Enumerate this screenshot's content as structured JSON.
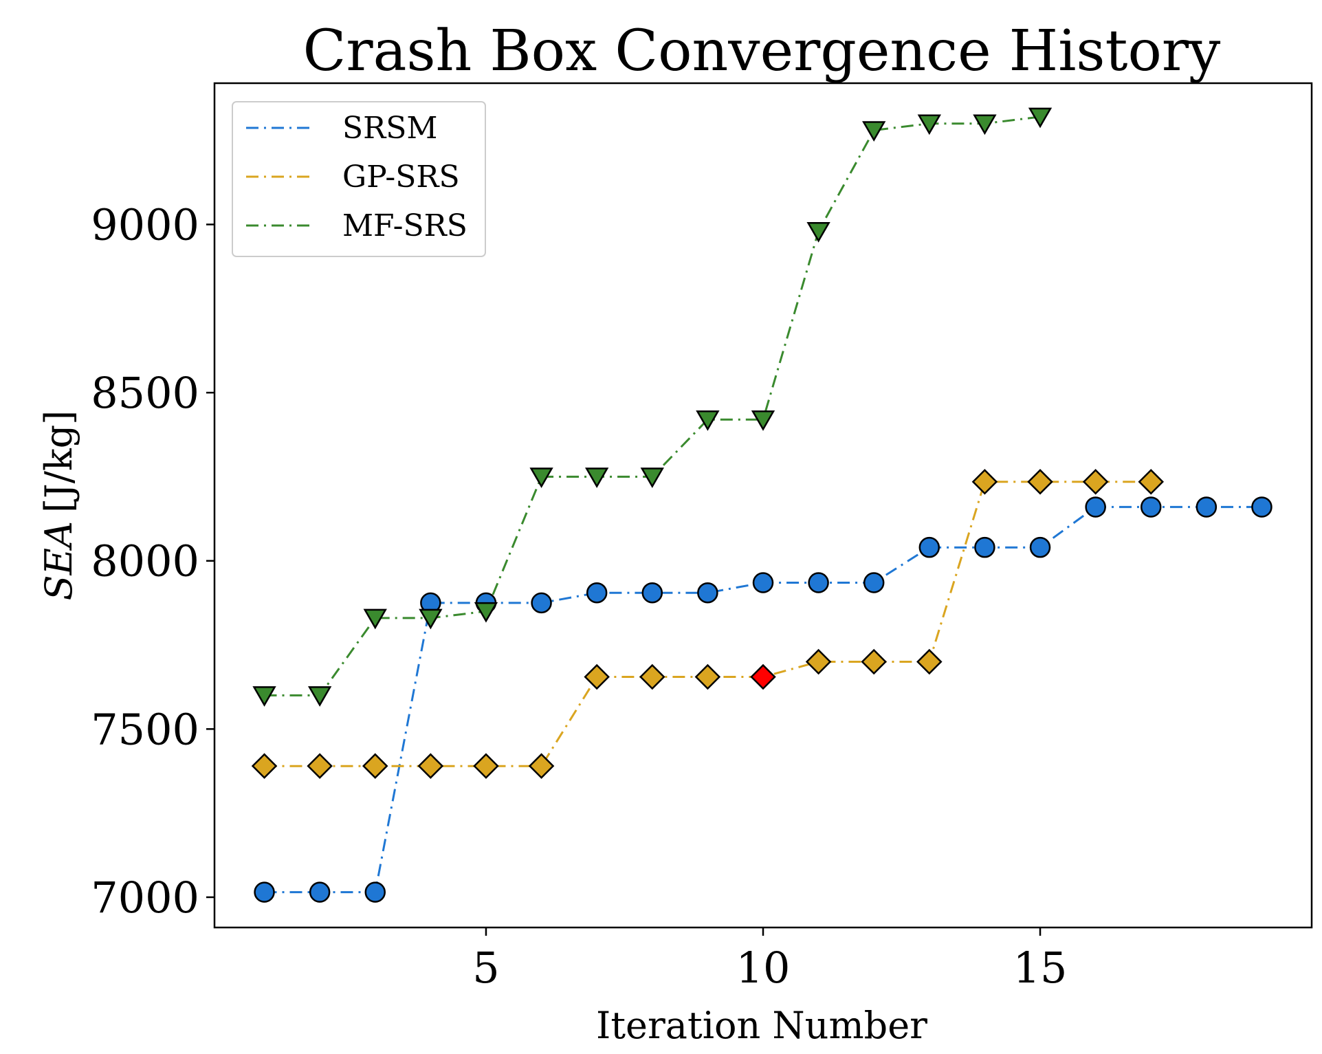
{
  "chart_data": {
    "type": "line",
    "title": "Crash Box Convergence History",
    "xlabel": "Iteration Number",
    "ylabel": "SEA [J/kg]",
    "ylabel_italic_part": "SEA",
    "ylabel_unit_part": "[J/kg]",
    "xlim": [
      0.1,
      19.9
    ],
    "ylim": [
      6910,
      9420
    ],
    "xticks": [
      5,
      10,
      15
    ],
    "xtick_labels": [
      "5",
      "10",
      "15"
    ],
    "yticks": [
      7000,
      7500,
      8000,
      8500,
      9000
    ],
    "ytick_labels": [
      "7000",
      "7500",
      "8000",
      "8500",
      "9000"
    ],
    "legend_position": "top-left",
    "series": [
      {
        "name": "SRSM",
        "color": "#1f77d4",
        "marker": "circle",
        "x": [
          1,
          2,
          3,
          4,
          5,
          6,
          7,
          8,
          9,
          10,
          11,
          12,
          13,
          14,
          15,
          16,
          17,
          18,
          19
        ],
        "values": [
          7015,
          7015,
          7015,
          7875,
          7875,
          7875,
          7905,
          7905,
          7905,
          7935,
          7935,
          7935,
          8040,
          8040,
          8040,
          8160,
          8160,
          8160,
          8160
        ]
      },
      {
        "name": "GP-SRS",
        "color": "#daa520",
        "marker": "diamond",
        "highlight_color": "#ff0000",
        "highlight_x": 10,
        "x": [
          1,
          2,
          3,
          4,
          5,
          6,
          7,
          8,
          9,
          10,
          11,
          12,
          13,
          14,
          15,
          16,
          17
        ],
        "values": [
          7390,
          7390,
          7390,
          7390,
          7390,
          7390,
          7655,
          7655,
          7655,
          7655,
          7700,
          7700,
          7700,
          8235,
          8235,
          8235,
          8235
        ]
      },
      {
        "name": "MF-SRS",
        "color": "#3a8a2e",
        "marker": "triangle-down",
        "x": [
          1,
          2,
          3,
          4,
          5,
          6,
          7,
          8,
          9,
          10,
          11,
          12,
          13,
          14,
          15
        ],
        "values": [
          7600,
          7600,
          7830,
          7830,
          7850,
          8250,
          8250,
          8250,
          8420,
          8420,
          8980,
          9280,
          9300,
          9300,
          9320
        ]
      }
    ]
  }
}
